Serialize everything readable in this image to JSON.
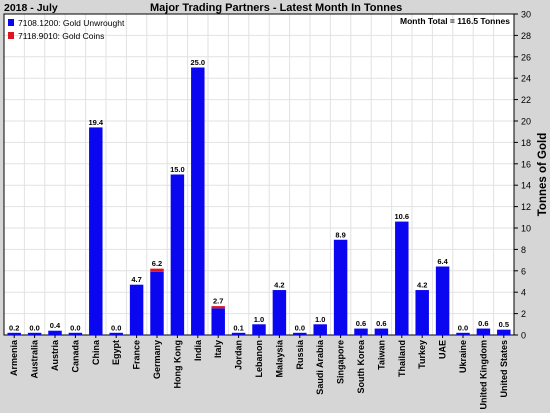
{
  "header": {
    "date_label": "2018 - July",
    "title": "Major Trading Partners - Latest Month In Tonnes"
  },
  "annotation": "Month Total = 116.5 Tonnes",
  "colors": {
    "unwrought": "#0a06f0",
    "coins": "#e0141e",
    "background": "#d6d6d6",
    "plot_bg": "#ffffff",
    "grid": "#e2e2e2"
  },
  "chart_data": {
    "type": "bar",
    "stacked": true,
    "title": "Major Trading Partners - Latest Month In Tonnes",
    "ylabel": "Tonnes of Gold",
    "ylim": [
      0,
      30
    ],
    "ytick_step": 2,
    "y_axis_position": "right",
    "grid": true,
    "legend_position": "top-left",
    "categories": [
      "Armenia",
      "Australia",
      "Austria",
      "Canada",
      "China",
      "Egypt",
      "France",
      "Germany",
      "Hong Kong",
      "India",
      "Italy",
      "Jordan",
      "Lebanon",
      "Malaysia",
      "Russia",
      "Saudi Arabia",
      "Singapore",
      "South Korea",
      "Taiwan",
      "Thailand",
      "Turkey",
      "UAE",
      "Ukraine",
      "United Kingdom",
      "United States"
    ],
    "totals_labels": [
      "0.2",
      "0.0",
      "0.4",
      "0.0",
      "19.4",
      "0.0",
      "4.7",
      "6.2",
      "15.0",
      "25.0",
      "2.7",
      "0.1",
      "1.0",
      "4.2",
      "0.0",
      "1.0",
      "8.9",
      "0.6",
      "0.6",
      "10.6",
      "4.2",
      "6.4",
      "0.0",
      "0.6",
      "0.5"
    ],
    "series": [
      {
        "name": "7108.1200: Gold Unwrought",
        "color": "#0a06f0",
        "values": [
          0.2,
          0.0,
          0.4,
          0.0,
          19.4,
          0.0,
          4.7,
          5.9,
          15.0,
          25.0,
          2.5,
          0.1,
          1.0,
          4.2,
          0.0,
          1.0,
          8.9,
          0.6,
          0.6,
          10.6,
          4.2,
          6.4,
          0.0,
          0.6,
          0.5
        ]
      },
      {
        "name": "7118.9010: Gold Coins",
        "color": "#e0141e",
        "values": [
          0.0,
          0.0,
          0.0,
          0.0,
          0.0,
          0.0,
          0.0,
          0.3,
          0.0,
          0.0,
          0.2,
          0.0,
          0.0,
          0.0,
          0.0,
          0.0,
          0.0,
          0.0,
          0.0,
          0.0,
          0.0,
          0.0,
          0.0,
          0.0,
          0.0
        ]
      }
    ]
  }
}
